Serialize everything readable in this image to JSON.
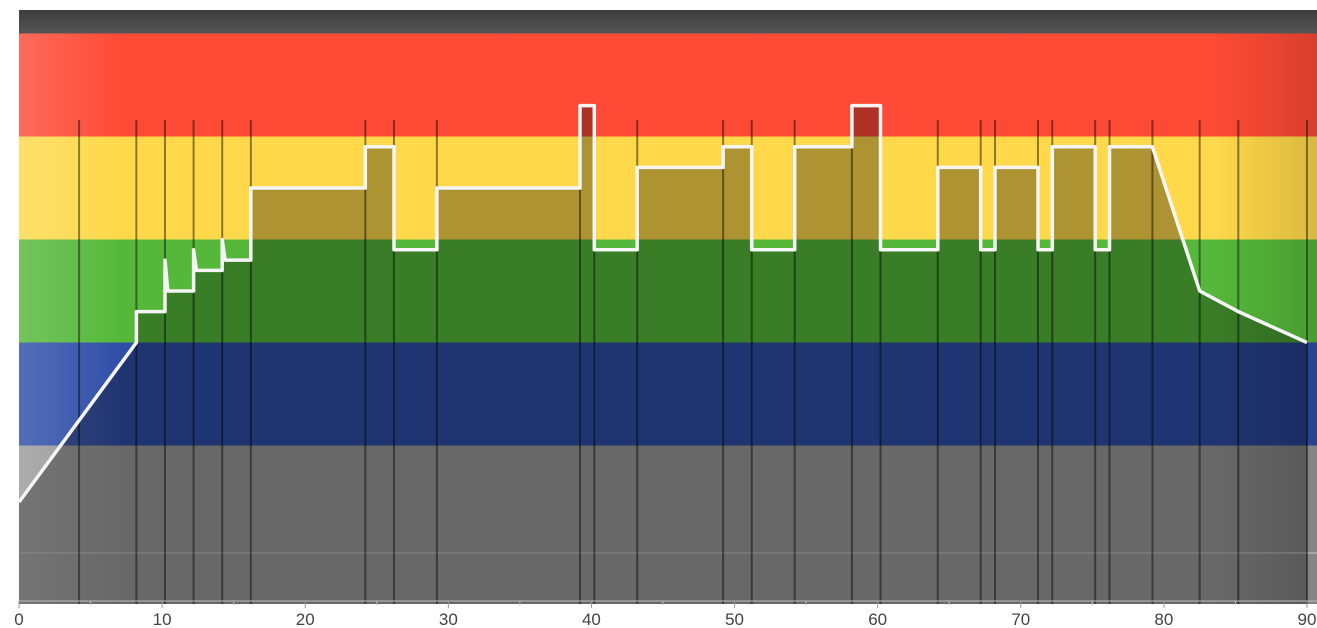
{
  "chart_data": {
    "type": "area",
    "title": "",
    "xlabel": "",
    "ylabel": "",
    "xlim": [
      0,
      90
    ],
    "ylim": [
      0,
      5.6
    ],
    "x_ticks": [
      "0",
      "10",
      "20",
      "30",
      "40",
      "50",
      "60",
      "70",
      "80",
      "90"
    ],
    "x_tick_values": [
      0,
      10,
      20,
      30,
      40,
      50,
      60,
      70,
      80,
      90
    ],
    "grid": false,
    "legend": "none",
    "zones": [
      {
        "name": "zone-1",
        "from": 0,
        "to": 1.5,
        "color": "#9a9a9a"
      },
      {
        "name": "zone-2",
        "from": 1.5,
        "to": 2.5,
        "color": "#2f4ea8"
      },
      {
        "name": "zone-3",
        "from": 2.5,
        "to": 3.5,
        "color": "#55b83a"
      },
      {
        "name": "zone-4",
        "from": 3.5,
        "to": 4.5,
        "color": "#ffd94a"
      },
      {
        "name": "zone-5",
        "from": 4.5,
        "to": 5.5,
        "color": "#ff4a35"
      }
    ],
    "series": [
      {
        "x": [
          0,
          8.2,
          8.2,
          10.2,
          10.2,
          10.4,
          10.4,
          12.2,
          12.2,
          12.4,
          12.4,
          14.2,
          14.2,
          14.4,
          14.4,
          16.2,
          16.2,
          24.2,
          24.2,
          26.2,
          26.2,
          29.2,
          29.2,
          39.2,
          39.2,
          40.2,
          40.2,
          43.2,
          43.2,
          49.2,
          49.2,
          51.2,
          51.2,
          54.2,
          54.2,
          58.2,
          58.2,
          60.2,
          60.2,
          64.2,
          64.2,
          67.2,
          67.2,
          68.2,
          68.2,
          71.2,
          71.2,
          72.2,
          72.2,
          75.2,
          75.2,
          76.2,
          76.2,
          79.2,
          82.5,
          82.5,
          85.2,
          85.2,
          90
        ],
        "y": [
          0.95,
          2.5,
          2.8,
          2.8,
          3.3,
          3.0,
          3.0,
          3.0,
          3.4,
          3.2,
          3.2,
          3.2,
          3.5,
          3.3,
          3.3,
          3.3,
          4.0,
          4.0,
          4.4,
          4.4,
          3.4,
          3.4,
          4.0,
          4.0,
          4.8,
          4.8,
          3.4,
          3.4,
          4.2,
          4.2,
          4.4,
          4.4,
          3.4,
          3.4,
          4.4,
          4.4,
          4.8,
          4.8,
          3.4,
          3.4,
          4.2,
          4.2,
          3.4,
          3.4,
          4.2,
          4.2,
          3.4,
          3.4,
          4.4,
          4.4,
          3.4,
          3.4,
          4.4,
          4.4,
          3.0,
          3.0,
          2.8,
          2.8,
          2.5
        ]
      }
    ],
    "interval_markers": [
      4.2,
      8.2,
      10.2,
      12.2,
      14.2,
      16.2,
      24.2,
      26.2,
      29.2,
      39.2,
      40.2,
      43.2,
      49.2,
      51.2,
      54.2,
      58.2,
      60.2,
      64.2,
      67.2,
      68.2,
      71.2,
      72.2,
      75.2,
      76.2,
      79.2,
      82.5,
      85.2,
      90
    ]
  }
}
